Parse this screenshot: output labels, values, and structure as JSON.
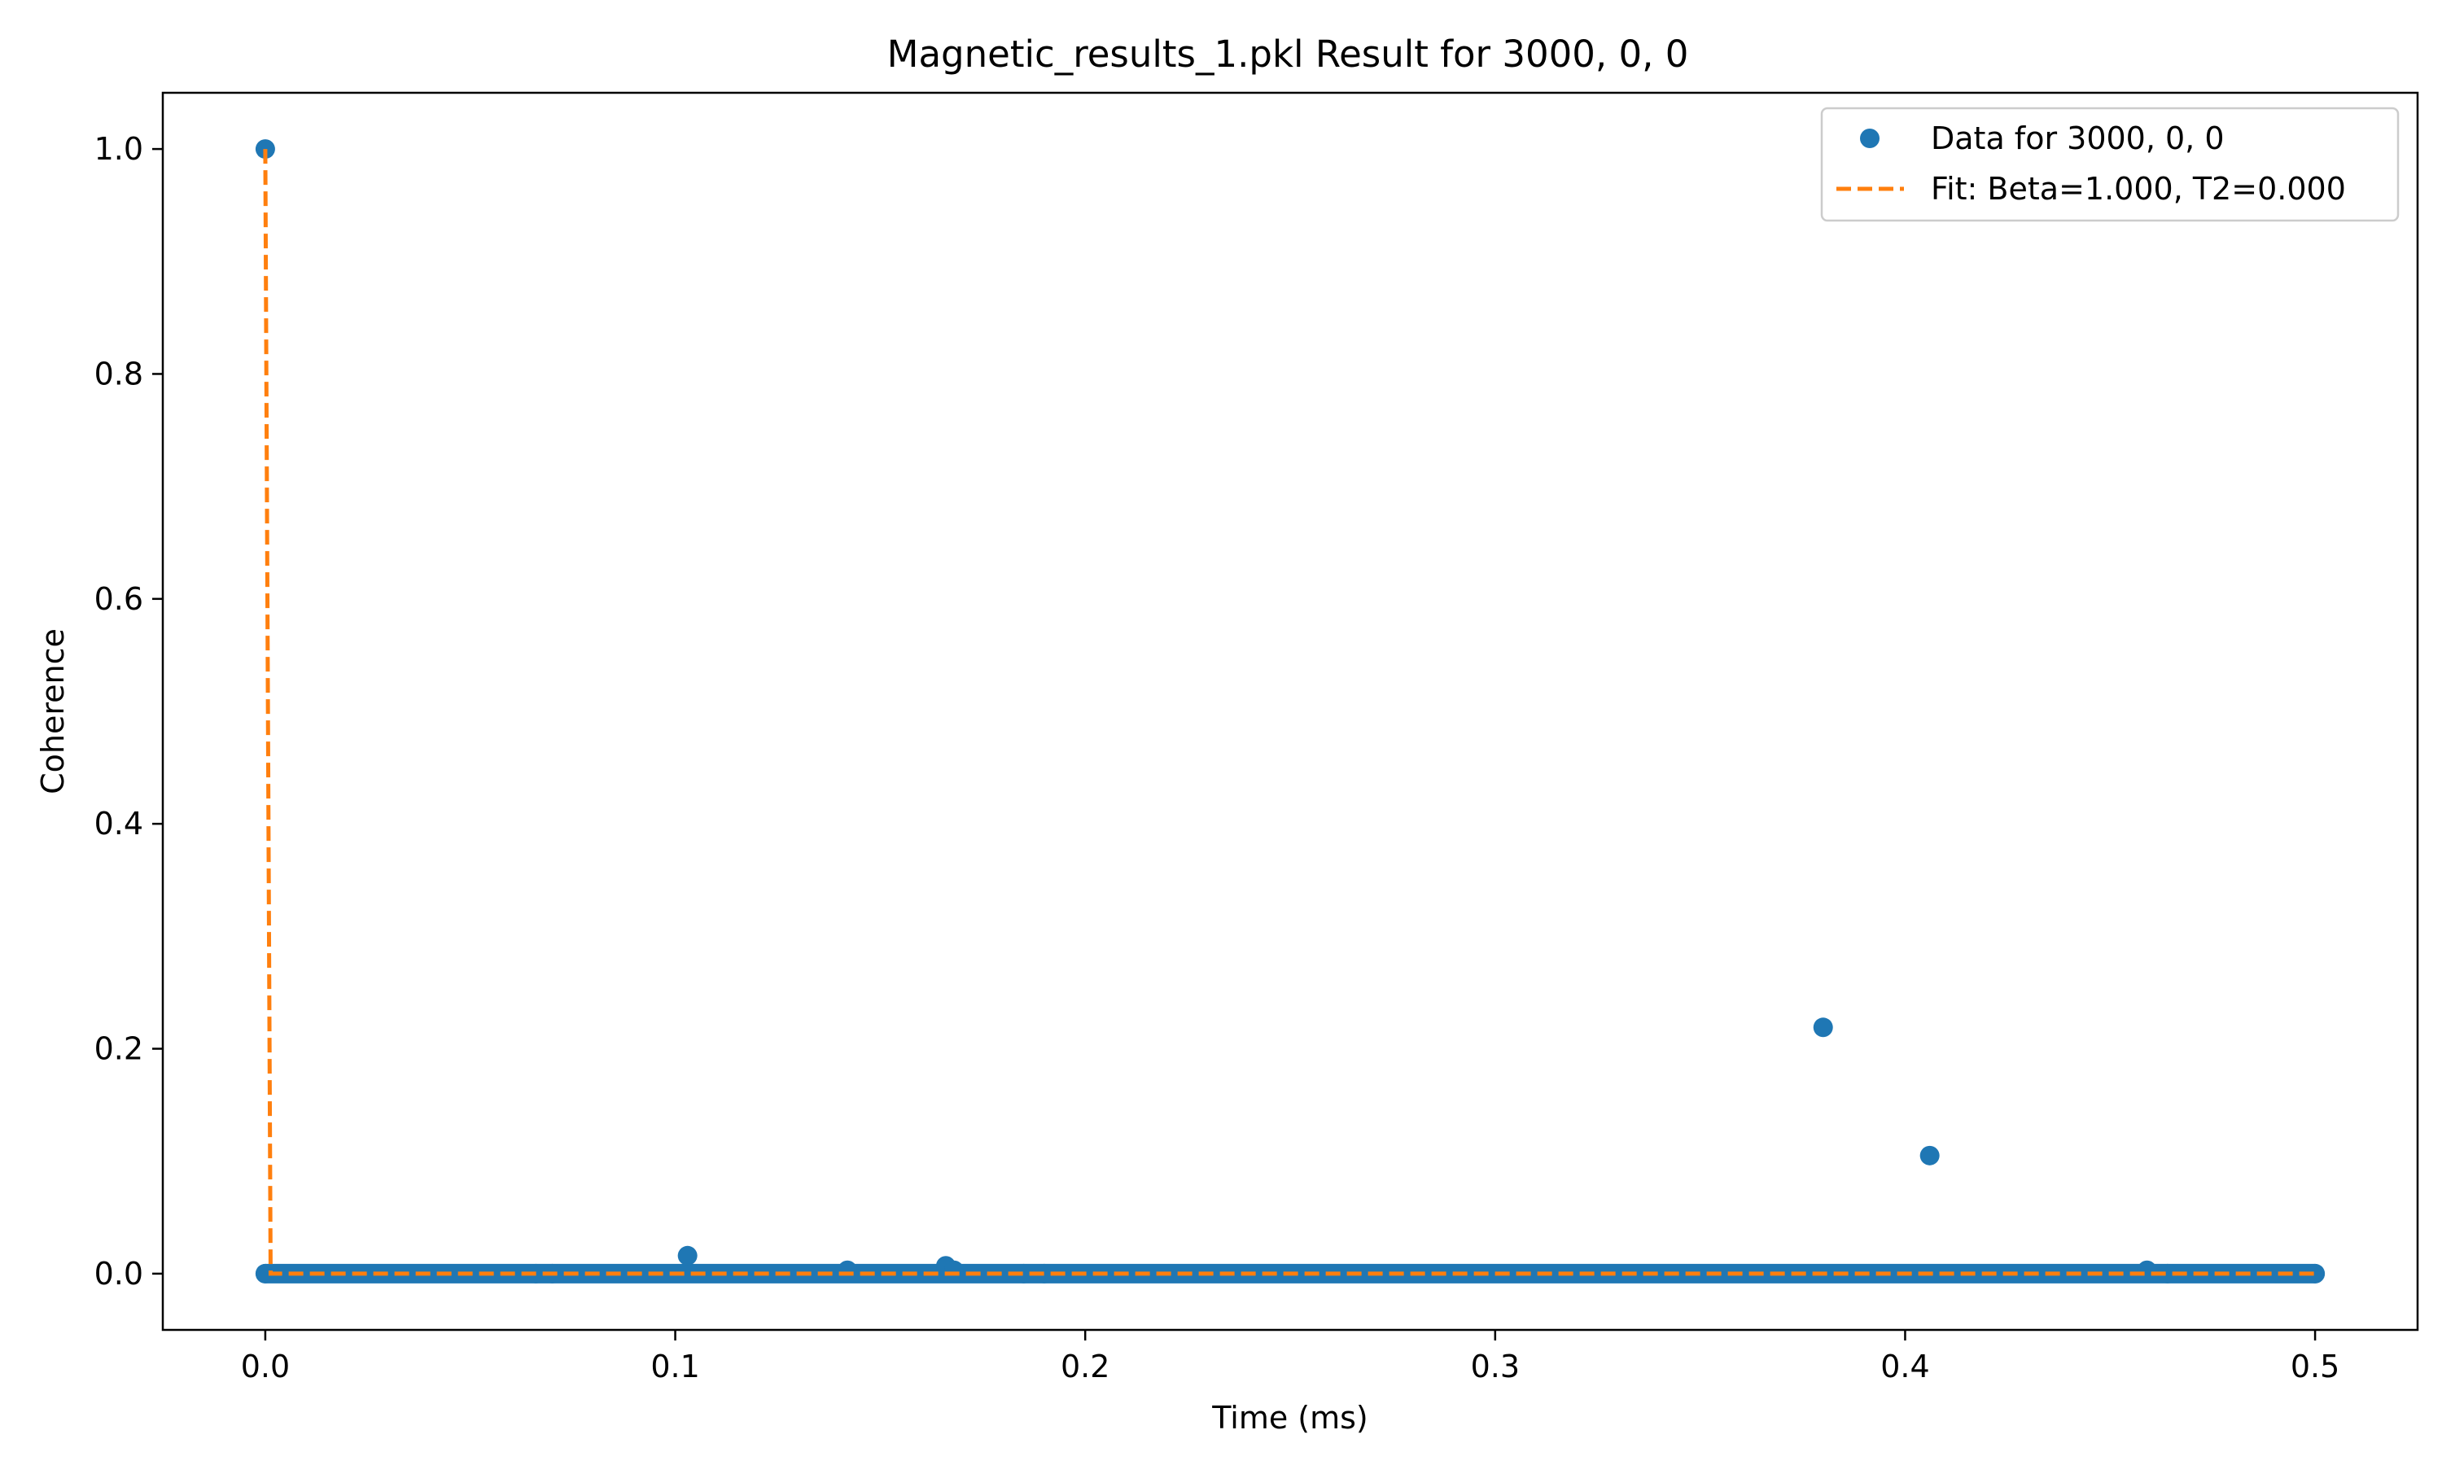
{
  "chart_data": {
    "type": "scatter",
    "title": "Magnetic_results_1.pkl Result for 3000, 0, 0",
    "xlabel": "Time (ms)",
    "ylabel": "Coherence",
    "xlim": [
      -0.025,
      0.525
    ],
    "ylim": [
      -0.05,
      1.05
    ],
    "xticks": [
      0.0,
      0.1,
      0.2,
      0.3,
      0.4,
      0.5
    ],
    "xtick_labels": [
      "0.0",
      "0.1",
      "0.2",
      "0.3",
      "0.4",
      "0.5"
    ],
    "yticks": [
      0.0,
      0.2,
      0.4,
      0.6,
      0.8,
      1.0
    ],
    "ytick_labels": [
      "0.0",
      "0.2",
      "0.4",
      "0.6",
      "0.8",
      "1.0"
    ],
    "grid": false,
    "legend_position": "top-right",
    "series": [
      {
        "name": "Data for 3000, 0, 0",
        "kind": "scatter",
        "color": "#1f77b4",
        "dense_baseline": {
          "x_start": 0.0,
          "x_end": 0.5,
          "y": 0.0
        },
        "points": [
          {
            "x": 0.0,
            "y": 1.0
          },
          {
            "x": 0.0,
            "y": 0.0
          },
          {
            "x": 0.066,
            "y": 0.0
          },
          {
            "x": 0.07,
            "y": 0.0
          },
          {
            "x": 0.103,
            "y": 0.016
          },
          {
            "x": 0.142,
            "y": 0.003
          },
          {
            "x": 0.166,
            "y": 0.007
          },
          {
            "x": 0.168,
            "y": 0.003
          },
          {
            "x": 0.185,
            "y": 0.0
          },
          {
            "x": 0.19,
            "y": 0.0
          },
          {
            "x": 0.38,
            "y": 0.219
          },
          {
            "x": 0.406,
            "y": 0.105
          },
          {
            "x": 0.459,
            "y": 0.003
          },
          {
            "x": 0.464,
            "y": 0.0
          },
          {
            "x": 0.5,
            "y": 0.0
          }
        ]
      },
      {
        "name": "Fit: Beta=1.000, T2=0.000",
        "kind": "line",
        "style": "dashed",
        "color": "#ff7f0e",
        "x": [
          0.0,
          0.0,
          0.0013,
          0.5
        ],
        "y": [
          1.0,
          1.0,
          0.0,
          0.0
        ]
      }
    ]
  }
}
